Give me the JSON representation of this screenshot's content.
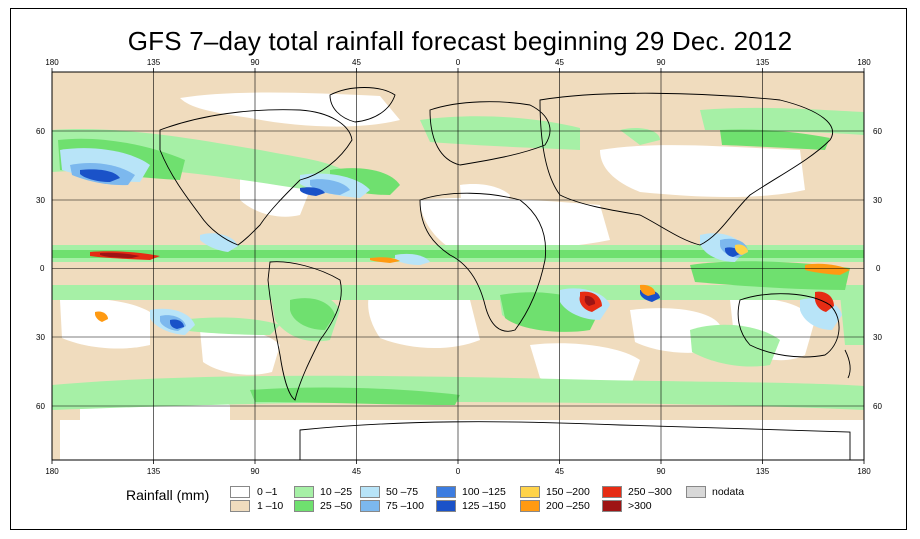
{
  "title": "GFS 7–day total rainfall forecast beginning 29 Dec. 2012",
  "top_ticks": [
    "180",
    "135",
    "90",
    "45",
    "0",
    "45",
    "90",
    "135",
    "180"
  ],
  "bottom_ticks": [
    "180",
    "135",
    "90",
    "45",
    "0",
    "45",
    "90",
    "135",
    "180"
  ],
  "left_ticks": [
    "60",
    "30",
    "0",
    "30",
    "60"
  ],
  "right_ticks": [
    "60",
    "30",
    "0",
    "30",
    "60"
  ],
  "legend": {
    "title": "Rainfall (mm)",
    "items": [
      {
        "label": "0 –1",
        "color": "#ffffff"
      },
      {
        "label": "1 –10",
        "color": "#f0dcbe"
      },
      {
        "label": "10 –25",
        "color": "#a6f0a6"
      },
      {
        "label": "25 –50",
        "color": "#6fe06f"
      },
      {
        "label": "50 –75",
        "color": "#b8e4f8"
      },
      {
        "label": "75 –100",
        "color": "#7cb8ee"
      },
      {
        "label": "100 –125",
        "color": "#3c7ce0"
      },
      {
        "label": "125 –150",
        "color": "#1a52c8"
      },
      {
        "label": "150 –200",
        "color": "#ffd34a"
      },
      {
        "label": "200 –250",
        "color": "#ff9a12"
      },
      {
        "label": "250 –300",
        "color": "#e62c14"
      },
      {
        "label": ">300",
        "color": "#9e1414"
      },
      {
        "label": "nodata",
        "color": "#d8d8d8"
      }
    ]
  }
}
